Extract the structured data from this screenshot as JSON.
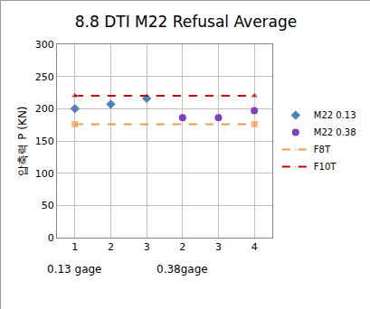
{
  "chart_data": {
    "type": "scatter",
    "title": "8.8 DTI M22 Refusal Average",
    "y_label": "압축력 P (KN)",
    "categories": [
      "1",
      "2",
      "3",
      "2",
      "3",
      "4"
    ],
    "series": [
      {
        "name": "M22 0.13",
        "type": "scatter",
        "color": "#4f81bd",
        "marker": "diamond",
        "values": [
          200,
          207,
          216,
          null,
          null,
          null
        ]
      },
      {
        "name": "M22 0.38",
        "type": "scatter",
        "color": "#7f3fbf",
        "marker": "circle",
        "values": [
          null,
          null,
          null,
          186,
          186,
          197
        ]
      },
      {
        "name": "F8T",
        "type": "line",
        "color": "#f79646",
        "marker": "square",
        "line_style": "dash",
        "values": [
          176,
          176,
          176,
          176,
          176,
          176
        ]
      },
      {
        "name": "F10T",
        "type": "line",
        "color": "#c00000",
        "marker": "triangle-up",
        "line_style": "dash",
        "values": [
          220,
          220,
          220,
          220,
          220,
          220
        ]
      }
    ],
    "annotations": [
      {
        "text": "0.13 gage",
        "category_index": 0
      },
      {
        "text": "0.38gage",
        "category_index": 3
      }
    ],
    "ylim": [
      0,
      300
    ],
    "yticks": [
      0,
      50,
      100,
      150,
      200,
      250,
      300
    ],
    "grid": true,
    "legend": "right"
  }
}
